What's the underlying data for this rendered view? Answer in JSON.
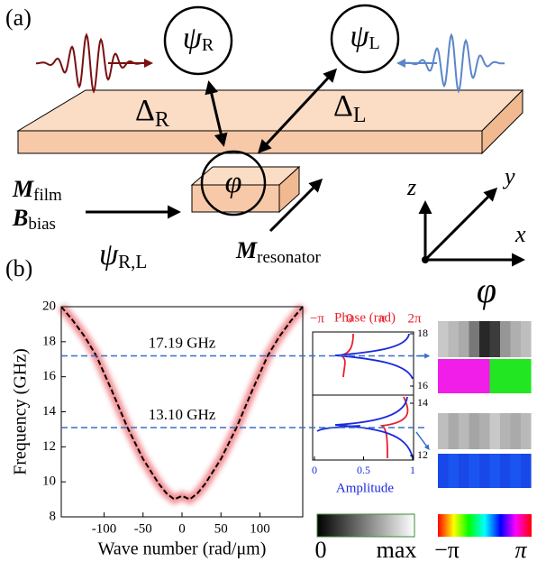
{
  "panel_a": {
    "label": "(a)",
    "psi_R": {
      "symbol": "ψ",
      "sub": "R"
    },
    "psi_L": {
      "symbol": "ψ",
      "sub": "L"
    },
    "delta_R": {
      "symbol": "Δ",
      "sub": "R"
    },
    "delta_L": {
      "symbol": "Δ",
      "sub": "L"
    },
    "phi": "φ",
    "m_film": {
      "symbol": "M",
      "sub": "film"
    },
    "b_bias": {
      "symbol": "B",
      "sub": "bias"
    },
    "psi_RL": {
      "symbol": "ψ",
      "sub": "R,L"
    },
    "m_resonator": {
      "symbol": "M",
      "sub": "resonator"
    },
    "axes": {
      "z": "z",
      "y": "y",
      "x": "x"
    }
  },
  "panel_b_label": "(b)",
  "chart_data": {
    "type": "line",
    "x_label": "Wave number (rad/μm)",
    "y_label": "Frequency (GHz)",
    "x": [
      -155,
      -140,
      -125,
      -110,
      -90,
      -70,
      -50,
      -30,
      -20,
      -10,
      0,
      10,
      20,
      30,
      50,
      70,
      90,
      110,
      125,
      140,
      155
    ],
    "series": [
      {
        "color": "#000000",
        "glow": "#e8303a",
        "values": [
          20,
          19.2,
          18.3,
          17.2,
          15.2,
          13.1,
          11.3,
          9.9,
          9.35,
          9.0,
          9.2,
          9.0,
          9.35,
          9.9,
          11.3,
          13.1,
          15.2,
          17.2,
          18.3,
          19.2,
          20
        ]
      }
    ],
    "xlim": [
      -155,
      155
    ],
    "xticks": [
      -100,
      -50,
      0,
      50,
      100
    ],
    "ylim": [
      8,
      20
    ],
    "yticks": [
      8,
      10,
      12,
      14,
      16,
      18,
      20
    ],
    "annotations": [
      {
        "value": 17.19,
        "label": "17.19 GHz"
      },
      {
        "value": 13.1,
        "label": "13.10 GHz"
      }
    ]
  },
  "side_panel": {
    "phase_label": "Phase (rad)",
    "phase_ticks": [
      "−π",
      "0",
      "π",
      "2π"
    ],
    "amplitude_label": "Amplitude",
    "amplitude_ticks": [
      0,
      0.5,
      1
    ],
    "upper_ticks": [
      18,
      16
    ],
    "lower_ticks": [
      14,
      12
    ]
  },
  "phi_title": "φ",
  "colorbars": {
    "gray": [
      "0",
      "max"
    ],
    "phase": [
      "−π",
      "π"
    ]
  }
}
